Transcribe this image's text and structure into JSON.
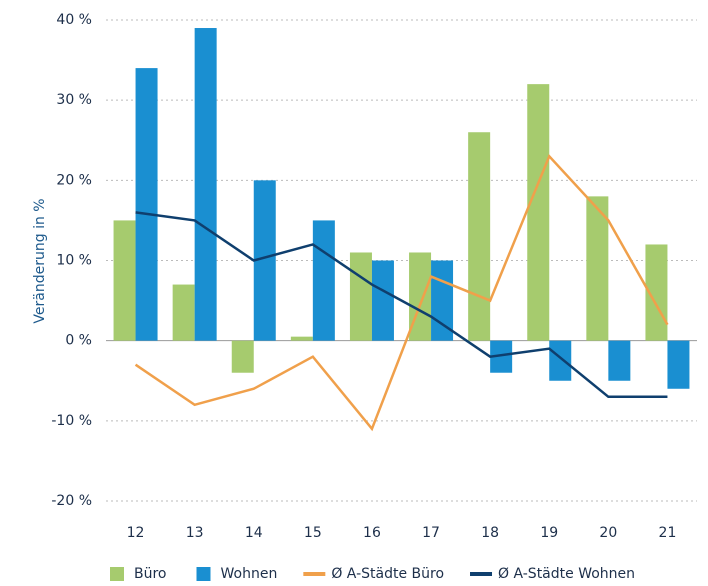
{
  "chart_data": {
    "type": "bar_line",
    "y_label": "Veränderung in %",
    "categories": [
      "12",
      "13",
      "14",
      "15",
      "16",
      "17",
      "18",
      "19",
      "20",
      "21"
    ],
    "series": [
      {
        "name": "Büro",
        "type": "bar",
        "color": "#a6cb6e",
        "values": [
          15,
          7,
          -4,
          0.5,
          11,
          11,
          26,
          32,
          18,
          12
        ]
      },
      {
        "name": "Wohnen",
        "type": "bar",
        "color": "#1a8fd1",
        "values": [
          34,
          39,
          20,
          15,
          10,
          10,
          -4,
          -5,
          -5,
          -6
        ]
      },
      {
        "name": "Ø A-Städte Büro",
        "type": "line",
        "color": "#f0a04b",
        "values": [
          -3,
          -8,
          -6,
          -2,
          -11,
          8,
          5,
          23,
          15,
          2
        ]
      },
      {
        "name": "Ø A-Städte Wohnen",
        "type": "line",
        "color": "#0f3f6e",
        "values": [
          16,
          15,
          10,
          12,
          7,
          3,
          -2,
          -1,
          -7,
          -7
        ]
      }
    ],
    "ylim": [
      -20,
      40
    ],
    "yticks": [
      {
        "value": -20,
        "label": "-20 %"
      },
      {
        "value": -10,
        "label": "-10 %"
      },
      {
        "value": 0,
        "label": "0 %"
      },
      {
        "value": 10,
        "label": "10 %"
      },
      {
        "value": 20,
        "label": "20 %"
      },
      {
        "value": 30,
        "label": "30 %"
      },
      {
        "value": 40,
        "label": "40 %"
      }
    ],
    "grid": true
  }
}
